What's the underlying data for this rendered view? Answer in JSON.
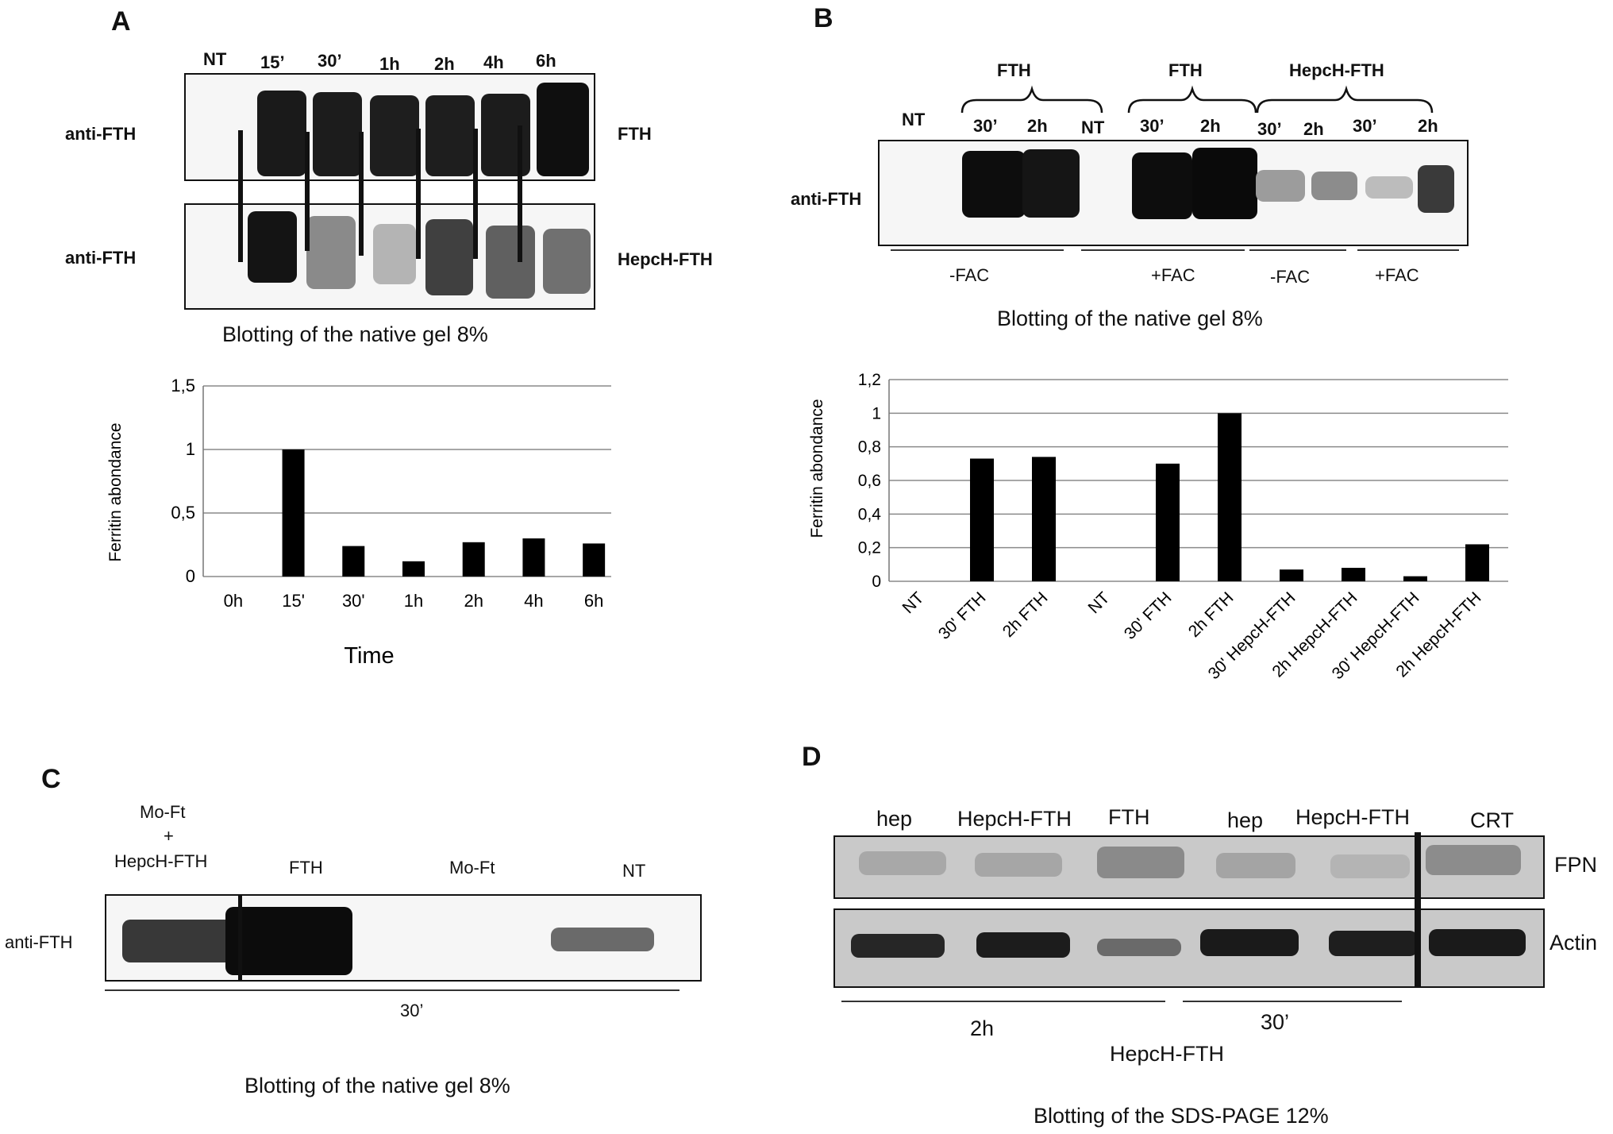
{
  "panelA": {
    "letter": "A",
    "lanes": [
      "NT",
      "15’",
      "30’",
      "1h",
      "2h",
      "4h",
      "6h"
    ],
    "row_labels": [
      "anti-FTH",
      "anti-FTH"
    ],
    "side_labels": [
      "FTH",
      "HepcH-FTH"
    ],
    "caption": "Blotting of the native gel 8%",
    "chart_data": {
      "type": "bar",
      "categories": [
        "0h",
        "15'",
        "30'",
        "1h",
        "2h",
        "4h",
        "6h"
      ],
      "values": [
        0,
        1.0,
        0.24,
        0.12,
        0.27,
        0.3,
        0.26
      ],
      "ylabel": "Ferritin abondance",
      "xlabel": "Time",
      "ylim": [
        0,
        1.5
      ],
      "yticks": [
        "0",
        "0,5",
        "1",
        "1,5"
      ],
      "grid": true
    }
  },
  "panelB": {
    "letter": "B",
    "group_labels": [
      "FTH",
      "FTH",
      "HepcH-FTH"
    ],
    "lanes": [
      "NT",
      "30’",
      "2h",
      "NT",
      "30’",
      "2h",
      "30’",
      "2h",
      "30’",
      "2h"
    ],
    "row_label": "anti-FTH",
    "fac_labels": [
      "-FAC",
      "+FAC",
      "-FAC",
      "+FAC"
    ],
    "caption": "Blotting of the native gel 8%",
    "chart_data": {
      "type": "bar",
      "categories": [
        "NT",
        "30' FTH",
        "2h FTH",
        "NT",
        "30' FTH",
        "2h FTH",
        "30' HepcH-FTH",
        "2h HepcH-FTH",
        "30' HepcH-FTH",
        "2h HepcH-FTH"
      ],
      "values": [
        0,
        0.73,
        0.74,
        0,
        0.7,
        1.0,
        0.07,
        0.08,
        0.03,
        0.22
      ],
      "ylabel": "Ferritin abondance",
      "ylim": [
        0,
        1.2
      ],
      "yticks": [
        "0",
        "0,2",
        "0,4",
        "0,6",
        "0,8",
        "1",
        "1,2"
      ],
      "grid": true
    }
  },
  "panelC": {
    "letter": "C",
    "lane1": [
      "Mo-Ft",
      "+",
      "HepcH-FTH"
    ],
    "lanes": [
      "FTH",
      "Mo-Ft",
      "NT"
    ],
    "row_label": "anti-FTH",
    "time": "30’",
    "caption": "Blotting of the native gel 8%"
  },
  "panelD": {
    "letter": "D",
    "lanes": [
      "hep",
      "HepcH-FTH",
      "FTH",
      "hep",
      "HepcH-FTH",
      "CRT"
    ],
    "side_labels": [
      "FPN",
      "Actin"
    ],
    "times": [
      "2h",
      "30’"
    ],
    "treatment": "HepcH-FTH",
    "caption": "Blotting of the SDS-PAGE 12%"
  }
}
